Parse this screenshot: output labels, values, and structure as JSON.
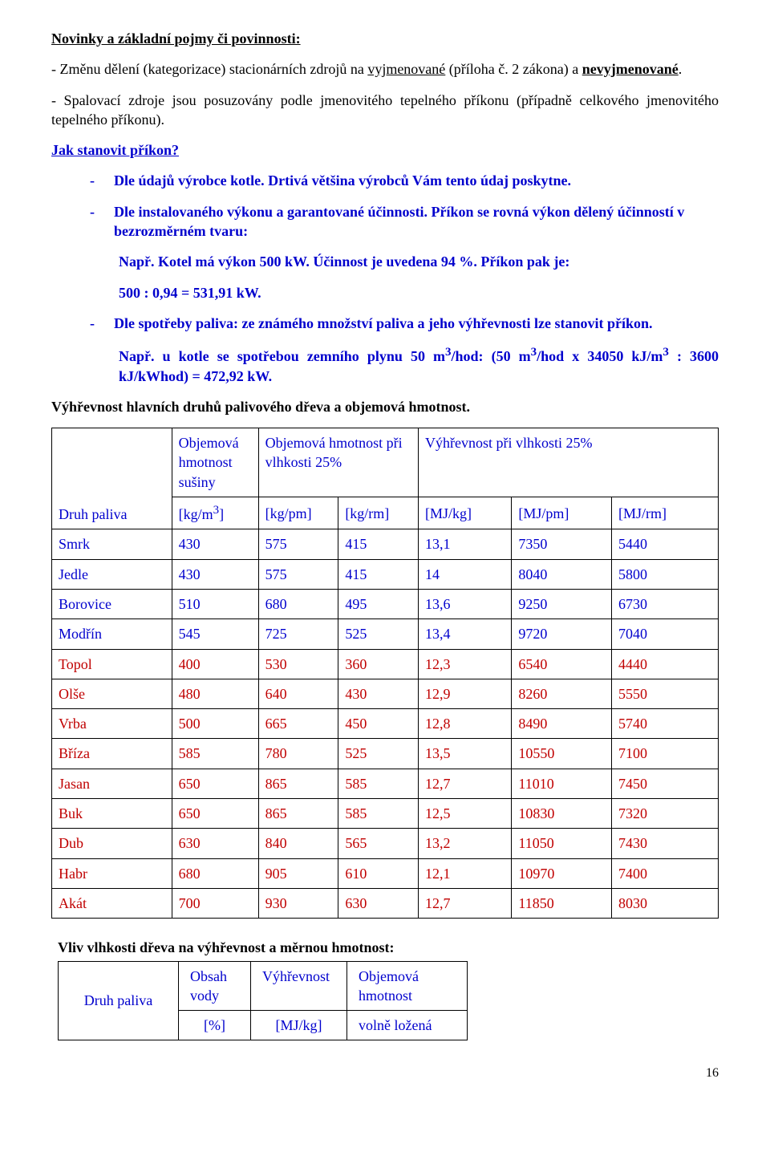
{
  "h1": "Novinky a základní pojmy či povinnosti:",
  "p1a": "- Změnu dělení (kategorizace) stacionárních zdrojů na ",
  "p1b": "vyjmenované",
  "p1c": " (příloha č. 2 zákona) a ",
  "p1d": "nevyjmenované",
  "p1e": ".",
  "p2": "- Spalovací zdroje jsou posuzovány podle jmenovitého tepelného příkonu (případně celkového jmenovitého tepelného příkonu).",
  "h2": "Jak stanovit příkon?",
  "li1": "Dle údajů výrobce kotle. Drtivá většina výrobců Vám tento údaj poskytne.",
  "li2": "Dle instalovaného výkonu a garantované účinnosti. Příkon se rovná výkon dělený účinností v bezrozměrném tvaru:",
  "li2a": "Např. Kotel má výkon 500 kW. Účinnost je uvedena 94 %. Příkon pak je:",
  "li2b": "500 :  0,94 = 531,91 kW.",
  "li3": "Dle spotřeby paliva: ze známého množství paliva a jeho výhřevnosti lze stanovit příkon.",
  "li3a_a": "Např. u kotle se spotřebou zemního plynu 50 m",
  "li3a_b": "/hod: (50 m",
  "li3a_c": "/hod x 34050 kJ/m",
  "li3a_d": " : 3600 kJ/kWhod) = 472,92 kW.",
  "sup3": "3",
  "t1_title": "Výhřevnost hlavních druhů palivového dřeva a objemová hmotnost.",
  "t1_h_fuel": "Druh paliva",
  "t1_h_densdry": "Objemová hmotnost sušiny",
  "t1_h_dens25": "Objemová hmotnost při vlhkosti 25%",
  "t1_h_cal25": "Výhřevnost při vlhkosti 25%",
  "t1_u_kgm3a": "[kg/m",
  "t1_u_kgm3b": "]",
  "t1_u_kgpm": "[kg/pm]",
  "t1_u_kgrm": "[kg/rm]",
  "t1_u_mjkg": "[MJ/kg]",
  "t1_u_mjpm": "[MJ/pm]",
  "t1_u_mjrm": "[MJ/rm]",
  "t1_rows": [
    {
      "name": "Smrk",
      "c": [
        "430",
        "575",
        "415",
        "13,1",
        "7350",
        "5440"
      ],
      "cls": "blue"
    },
    {
      "name": "Jedle",
      "c": [
        "430",
        "575",
        "415",
        "14",
        "8040",
        "5800"
      ],
      "cls": "blue"
    },
    {
      "name": "Borovice",
      "c": [
        "510",
        "680",
        "495",
        "13,6",
        "9250",
        "6730"
      ],
      "cls": "blue"
    },
    {
      "name": "Modřín",
      "c": [
        "545",
        "725",
        "525",
        "13,4",
        "9720",
        "7040"
      ],
      "cls": "blue"
    },
    {
      "name": "Topol",
      "c": [
        "400",
        "530",
        "360",
        "12,3",
        "6540",
        "4440"
      ],
      "cls": "red"
    },
    {
      "name": "Olše",
      "c": [
        "480",
        "640",
        "430",
        "12,9",
        "8260",
        "5550"
      ],
      "cls": "red"
    },
    {
      "name": "Vrba",
      "c": [
        "500",
        "665",
        "450",
        "12,8",
        "8490",
        "5740"
      ],
      "cls": "red"
    },
    {
      "name": "Bříza",
      "c": [
        "585",
        "780",
        "525",
        "13,5",
        "10550",
        "7100"
      ],
      "cls": "red"
    },
    {
      "name": "Jasan",
      "c": [
        "650",
        "865",
        "585",
        "12,7",
        "11010",
        "7450"
      ],
      "cls": "red"
    },
    {
      "name": "Buk",
      "c": [
        "650",
        "865",
        "585",
        "12,5",
        "10830",
        "7320"
      ],
      "cls": "red"
    },
    {
      "name": "Dub",
      "c": [
        "630",
        "840",
        "565",
        "13,2",
        "11050",
        "7430"
      ],
      "cls": "red"
    },
    {
      "name": "Habr",
      "c": [
        "680",
        "905",
        "610",
        "12,1",
        "10970",
        "7400"
      ],
      "cls": "red"
    },
    {
      "name": "Akát",
      "c": [
        "700",
        "930",
        "630",
        "12,7",
        "11850",
        "8030"
      ],
      "cls": "red"
    }
  ],
  "t2_title": "Vliv vlhkosti dřeva na výhřevnost a měrnou hmotnost:",
  "t2_h_fuel": "Druh paliva",
  "t2_h_water": "Obsah vody",
  "t2_h_cal": "Výhřevnost",
  "t2_h_dens": "Objemová hmotnost",
  "t2_u_pct": "[%]",
  "t2_u_mjkg": "[MJ/kg]",
  "t2_u_loose": "volně ložená",
  "pageNumber": "16",
  "colors": {
    "text": "#000000",
    "blue": "#0000cd",
    "red": "#c00000",
    "border": "#000000",
    "bg": "#ffffff"
  },
  "colwidths_t1": [
    "18%",
    "13%",
    "12%",
    "12%",
    "14%",
    "15%",
    "16%"
  ],
  "colwidths_t2": [
    "150px",
    "90px",
    "120px",
    "150px"
  ]
}
